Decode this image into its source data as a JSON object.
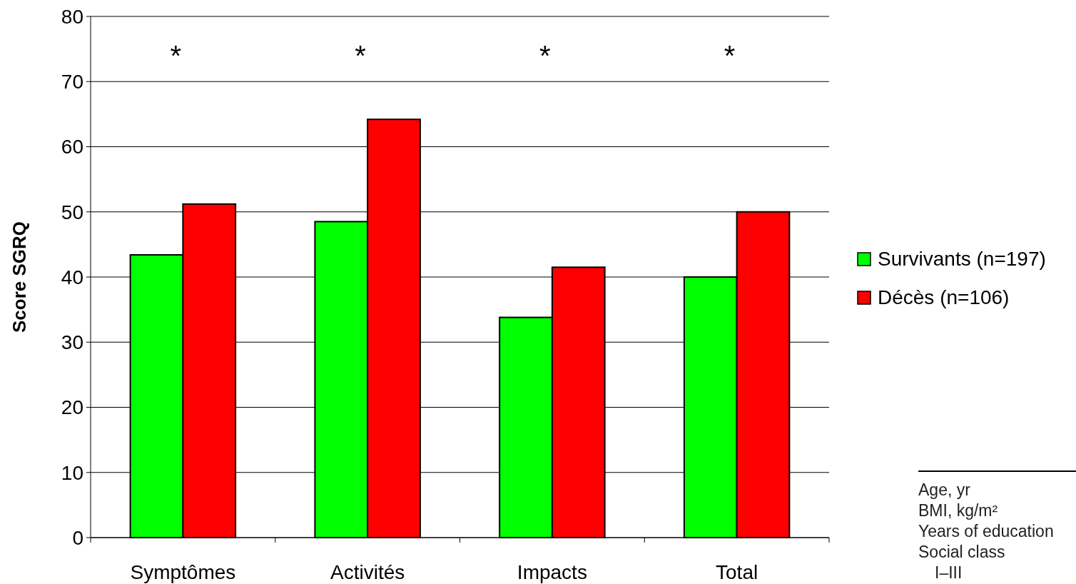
{
  "chart_data": {
    "type": "bar",
    "ylabel": "Score SGRQ",
    "categories": [
      "Symptômes",
      "Activités",
      "Impacts",
      "Total"
    ],
    "series": [
      {
        "name": "Survivants (n=197)",
        "color": "#00ff00",
        "values": [
          43.4,
          48.5,
          33.8,
          40.0
        ]
      },
      {
        "name": "Décès (n=106)",
        "color": "#ff0000",
        "values": [
          51.2,
          64.2,
          41.5,
          50.0
        ]
      }
    ],
    "ylim": [
      0,
      80
    ],
    "yticks": [
      0,
      10,
      20,
      30,
      40,
      50,
      60,
      70,
      80
    ],
    "grid": "y",
    "legend": "right",
    "annotations": [
      "*",
      "*",
      "*",
      "*",
      "Age, yr",
      "BMI, kg/m²",
      "Years of education",
      "Social class",
      "I–III"
    ]
  }
}
